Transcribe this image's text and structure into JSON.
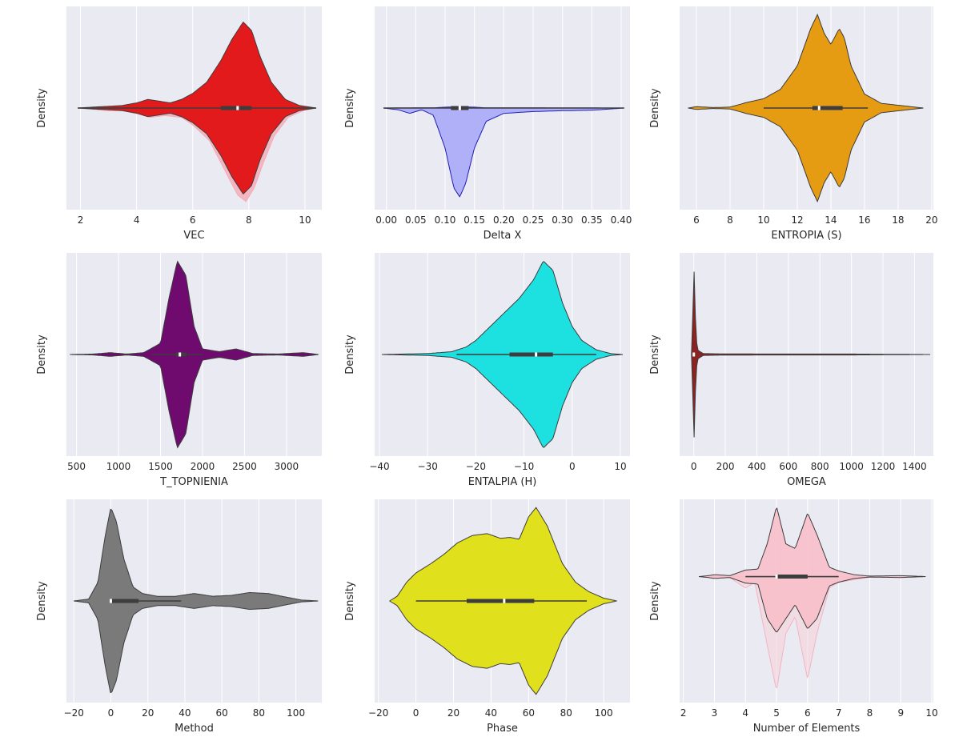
{
  "figure": {
    "ylabel": "Density"
  },
  "chart_data": [
    {
      "type": "violin",
      "xlabel": "VEC",
      "ylabel": "Density",
      "xlim": [
        1.5,
        10.6
      ],
      "xticks": [
        2,
        4,
        6,
        8,
        10
      ],
      "xtick_labels": [
        "2",
        "4",
        "6",
        "8",
        "10"
      ],
      "color": "#e31a1c",
      "ghost_color": "#f4aab5",
      "range": [
        1.9,
        10.4
      ],
      "density": [
        [
          1.9,
          0
        ],
        [
          2.5,
          0.012
        ],
        [
          3.0,
          0.02
        ],
        [
          3.5,
          0.03
        ],
        [
          4.0,
          0.06
        ],
        [
          4.4,
          0.1
        ],
        [
          4.8,
          0.08
        ],
        [
          5.2,
          0.06
        ],
        [
          5.6,
          0.1
        ],
        [
          6.0,
          0.17
        ],
        [
          6.5,
          0.3
        ],
        [
          7.0,
          0.55
        ],
        [
          7.4,
          0.8
        ],
        [
          7.8,
          1.0
        ],
        [
          8.1,
          0.9
        ],
        [
          8.4,
          0.6
        ],
        [
          8.8,
          0.3
        ],
        [
          9.3,
          0.1
        ],
        [
          9.8,
          0.03
        ],
        [
          10.4,
          0
        ]
      ],
      "ghost_density": [
        [
          1.9,
          0
        ],
        [
          2.5,
          0.015
        ],
        [
          3.0,
          0.03
        ],
        [
          3.5,
          0.03
        ],
        [
          4.0,
          0.06
        ],
        [
          4.5,
          0.1
        ],
        [
          5.0,
          0.08
        ],
        [
          5.6,
          0.1
        ],
        [
          6.0,
          0.18
        ],
        [
          6.6,
          0.35
        ],
        [
          7.2,
          0.7
        ],
        [
          7.6,
          0.93
        ],
        [
          7.9,
          1.0
        ],
        [
          8.2,
          0.85
        ],
        [
          8.5,
          0.6
        ],
        [
          8.9,
          0.3
        ],
        [
          9.4,
          0.1
        ],
        [
          10.0,
          0.02
        ],
        [
          10.4,
          0
        ]
      ],
      "lower_uses_ghost": false,
      "box": {
        "whisker_low": 1.9,
        "q1": 7.0,
        "median": 7.6,
        "q3": 8.1,
        "whisker_high": 10.4
      }
    },
    {
      "type": "violin",
      "xlabel": "Delta X",
      "ylabel": "Density",
      "xlim": [
        -0.02,
        0.415
      ],
      "xticks": [
        0,
        0.05,
        0.1,
        0.15,
        0.2,
        0.25,
        0.3,
        0.35,
        0.4
      ],
      "xtick_labels": [
        "0.00",
        "0.05",
        "0.10",
        "0.15",
        "0.20",
        "0.25",
        "0.30",
        "0.35",
        "0.40"
      ],
      "color": "#b0b0f8",
      "ghost_color": "#1f1fb4",
      "range": [
        -0.005,
        0.405
      ],
      "density": [
        [
          -0.005,
          0
        ],
        [
          0.02,
          0.02
        ],
        [
          0.04,
          0.06
        ],
        [
          0.06,
          0.02
        ],
        [
          0.08,
          0.08
        ],
        [
          0.1,
          0.45
        ],
        [
          0.115,
          0.9
        ],
        [
          0.125,
          1.0
        ],
        [
          0.135,
          0.85
        ],
        [
          0.15,
          0.45
        ],
        [
          0.17,
          0.15
        ],
        [
          0.2,
          0.06
        ],
        [
          0.25,
          0.04
        ],
        [
          0.3,
          0.03
        ],
        [
          0.35,
          0.025
        ],
        [
          0.405,
          0
        ]
      ],
      "ghost_density": [
        [
          -0.005,
          0
        ],
        [
          0.08,
          0.05
        ],
        [
          0.1,
          0.2
        ],
        [
          0.125,
          0.3
        ],
        [
          0.15,
          0.2
        ],
        [
          0.17,
          0.05
        ],
        [
          0.405,
          0
        ]
      ],
      "lower_uses_ghost": true,
      "upper_style": "thin",
      "box": {
        "whisker_low": -0.005,
        "q1": 0.11,
        "median": 0.125,
        "q3": 0.14,
        "whisker_high": 0.405
      }
    },
    {
      "type": "violin",
      "xlabel": "ENTROPIA (S)",
      "ylabel": "Density",
      "xlim": [
        5.0,
        20.1
      ],
      "xticks": [
        6,
        8,
        10,
        12,
        14,
        16,
        18,
        20
      ],
      "xtick_labels": [
        "6",
        "8",
        "10",
        "12",
        "14",
        "16",
        "18",
        "20"
      ],
      "color": "#e59b12",
      "ghost_color": "#e59b12",
      "range": [
        5.5,
        19.5
      ],
      "density": [
        [
          5.5,
          0
        ],
        [
          6.0,
          0.015
        ],
        [
          7.0,
          0.005
        ],
        [
          8.0,
          0.01
        ],
        [
          9.0,
          0.06
        ],
        [
          10.0,
          0.1
        ],
        [
          11.0,
          0.2
        ],
        [
          12.0,
          0.45
        ],
        [
          12.8,
          0.85
        ],
        [
          13.2,
          1.0
        ],
        [
          13.6,
          0.8
        ],
        [
          14.0,
          0.68
        ],
        [
          14.5,
          0.85
        ],
        [
          14.8,
          0.75
        ],
        [
          15.2,
          0.45
        ],
        [
          16.0,
          0.15
        ],
        [
          17.0,
          0.05
        ],
        [
          18.0,
          0.03
        ],
        [
          19.5,
          0
        ]
      ],
      "lower_uses_ghost": false,
      "box": {
        "whisker_low": 10.0,
        "q1": 12.9,
        "median": 13.3,
        "q3": 14.7,
        "whisker_high": 16.2
      }
    },
    {
      "type": "violin",
      "xlabel": "T_TOPNIENIA",
      "ylabel": "Density",
      "xlim": [
        380,
        3420
      ],
      "xticks": [
        500,
        1000,
        1500,
        2000,
        2500,
        3000
      ],
      "xtick_labels": [
        "500",
        "1000",
        "1500",
        "2000",
        "2500",
        "3000"
      ],
      "color": "#6f0a6f",
      "ghost_color": "#6f0a6f",
      "range": [
        420,
        3380
      ],
      "density": [
        [
          420,
          0
        ],
        [
          700,
          0.005
        ],
        [
          900,
          0.02
        ],
        [
          1100,
          0.005
        ],
        [
          1300,
          0.02
        ],
        [
          1500,
          0.12
        ],
        [
          1600,
          0.6
        ],
        [
          1700,
          1.0
        ],
        [
          1800,
          0.85
        ],
        [
          1900,
          0.3
        ],
        [
          2000,
          0.06
        ],
        [
          2200,
          0.03
        ],
        [
          2400,
          0.06
        ],
        [
          2600,
          0.01
        ],
        [
          2900,
          0.005
        ],
        [
          3200,
          0.02
        ],
        [
          3380,
          0
        ]
      ],
      "lower_uses_ghost": false,
      "box": {
        "whisker_low": 1400,
        "q1": 1680,
        "median": 1730,
        "q3": 1810,
        "whisker_high": 2000
      }
    },
    {
      "type": "violin",
      "xlabel": "ENTALPIA (H)",
      "ylabel": "Density",
      "xlim": [
        -41,
        12
      ],
      "xticks": [
        -40,
        -30,
        -20,
        -10,
        0,
        10
      ],
      "xtick_labels": [
        "−40",
        "−30",
        "−20",
        "−10",
        "0",
        "10"
      ],
      "color": "#1de1e1",
      "ghost_color": "#7ff4f4",
      "range": [
        -39.5,
        10.5
      ],
      "density": [
        [
          -39.5,
          0
        ],
        [
          -35,
          0.005
        ],
        [
          -30,
          0.01
        ],
        [
          -25,
          0.03
        ],
        [
          -22,
          0.08
        ],
        [
          -20,
          0.15
        ],
        [
          -17,
          0.3
        ],
        [
          -14,
          0.45
        ],
        [
          -11,
          0.6
        ],
        [
          -8,
          0.8
        ],
        [
          -6,
          1.0
        ],
        [
          -4,
          0.9
        ],
        [
          -2,
          0.55
        ],
        [
          0,
          0.3
        ],
        [
          2,
          0.15
        ],
        [
          5,
          0.05
        ],
        [
          8,
          0.01
        ],
        [
          10.5,
          0
        ]
      ],
      "lower_uses_ghost": false,
      "box": {
        "whisker_low": -24,
        "q1": -13,
        "median": -7.5,
        "q3": -4,
        "whisker_high": 5
      }
    },
    {
      "type": "violin",
      "xlabel": "OMEGA",
      "ylabel": "Density",
      "xlim": [
        -90,
        1520
      ],
      "xticks": [
        0,
        200,
        400,
        600,
        800,
        1000,
        1200,
        1400
      ],
      "xtick_labels": [
        "0",
        "200",
        "400",
        "600",
        "800",
        "1000",
        "1200",
        "1400"
      ],
      "color": "#8c2323",
      "ghost_color": "#8c2323",
      "range": [
        -15,
        1500
      ],
      "density": [
        [
          -15,
          0
        ],
        [
          -8,
          0.3
        ],
        [
          0,
          1.0
        ],
        [
          8,
          0.5
        ],
        [
          15,
          0.2
        ],
        [
          22,
          0.05
        ],
        [
          60,
          0.01
        ],
        [
          200,
          0.006
        ],
        [
          600,
          0.005
        ],
        [
          1000,
          0.005
        ],
        [
          1500,
          0
        ]
      ],
      "lower_uses_ghost": false,
      "box": {
        "whisker_low": -5,
        "q1": -2,
        "median": 0,
        "q3": 3,
        "whisker_high": 10
      }
    },
    {
      "type": "violin",
      "xlabel": "Method",
      "ylabel": "Density",
      "xlim": [
        -24,
        114
      ],
      "xticks": [
        -20,
        0,
        20,
        40,
        60,
        80,
        100
      ],
      "xtick_labels": [
        "−20",
        "0",
        "20",
        "40",
        "60",
        "80",
        "100"
      ],
      "color": "#7a7a7a",
      "ghost_color": "#7a7a7a",
      "range": [
        -20,
        112
      ],
      "density": [
        [
          -20,
          0
        ],
        [
          -12,
          0.02
        ],
        [
          -7,
          0.2
        ],
        [
          -3,
          0.7
        ],
        [
          0,
          1.0
        ],
        [
          3,
          0.85
        ],
        [
          7,
          0.45
        ],
        [
          12,
          0.15
        ],
        [
          17,
          0.08
        ],
        [
          25,
          0.05
        ],
        [
          35,
          0.05
        ],
        [
          45,
          0.08
        ],
        [
          55,
          0.05
        ],
        [
          65,
          0.06
        ],
        [
          75,
          0.09
        ],
        [
          85,
          0.08
        ],
        [
          95,
          0.04
        ],
        [
          103,
          0.01
        ],
        [
          112,
          0
        ]
      ],
      "lower_uses_ghost": false,
      "box": {
        "whisker_low": 0,
        "q1": 0,
        "median": 0,
        "q3": 15,
        "whisker_high": 38
      }
    },
    {
      "type": "violin",
      "xlabel": "Phase",
      "ylabel": "Density",
      "xlim": [
        -22,
        114
      ],
      "xticks": [
        -20,
        0,
        20,
        40,
        60,
        80,
        100
      ],
      "xtick_labels": [
        "−20",
        "0",
        "20",
        "40",
        "60",
        "80",
        "100"
      ],
      "color": "#e0e01c",
      "ghost_color": "#f5f565",
      "range": [
        -14,
        107
      ],
      "density": [
        [
          -14,
          0
        ],
        [
          -10,
          0.05
        ],
        [
          -5,
          0.2
        ],
        [
          0,
          0.3
        ],
        [
          8,
          0.4
        ],
        [
          15,
          0.5
        ],
        [
          22,
          0.62
        ],
        [
          30,
          0.7
        ],
        [
          38,
          0.72
        ],
        [
          45,
          0.67
        ],
        [
          50,
          0.68
        ],
        [
          55,
          0.66
        ],
        [
          60,
          0.9
        ],
        [
          64,
          1.0
        ],
        [
          70,
          0.8
        ],
        [
          78,
          0.4
        ],
        [
          85,
          0.2
        ],
        [
          92,
          0.1
        ],
        [
          100,
          0.03
        ],
        [
          107,
          0
        ]
      ],
      "lower_uses_ghost": false,
      "box": {
        "whisker_low": 0,
        "q1": 27,
        "median": 47,
        "q3": 63,
        "whisker_high": 91
      }
    },
    {
      "type": "violin",
      "xlabel": "Number of Elements",
      "ylabel": "Density",
      "xlim": [
        1.88,
        10.05
      ],
      "xticks": [
        2,
        3,
        4,
        5,
        6,
        7,
        8,
        9,
        10
      ],
      "xtick_labels": [
        "2",
        "3",
        "4",
        "5",
        "6",
        "7",
        "8",
        "9",
        "10"
      ],
      "color": "#f8bfca",
      "ghost_color": "#f5d0d8",
      "range": [
        2.5,
        9.8
      ],
      "density": [
        [
          2.5,
          0
        ],
        [
          2.8,
          0.01
        ],
        [
          3.0,
          0.02
        ],
        [
          3.5,
          0.01
        ],
        [
          4.0,
          0.07
        ],
        [
          4.4,
          0.08
        ],
        [
          4.7,
          0.35
        ],
        [
          5.0,
          0.75
        ],
        [
          5.3,
          0.35
        ],
        [
          5.6,
          0.3
        ],
        [
          6.0,
          0.68
        ],
        [
          6.3,
          0.45
        ],
        [
          6.7,
          0.1
        ],
        [
          7.0,
          0.06
        ],
        [
          7.5,
          0.02
        ],
        [
          8.0,
          0.005
        ],
        [
          9.0,
          0.01
        ],
        [
          9.8,
          0
        ]
      ],
      "lower_density": [
        [
          2.5,
          0
        ],
        [
          2.8,
          0.01
        ],
        [
          3.0,
          0.02
        ],
        [
          3.5,
          0.01
        ],
        [
          4.0,
          0.07
        ],
        [
          4.4,
          0.08
        ],
        [
          4.7,
          0.45
        ],
        [
          5.0,
          0.6
        ],
        [
          5.3,
          0.45
        ],
        [
          5.6,
          0.3
        ],
        [
          6.0,
          0.56
        ],
        [
          6.3,
          0.45
        ],
        [
          6.7,
          0.1
        ],
        [
          7.0,
          0.06
        ],
        [
          7.5,
          0.02
        ],
        [
          8.0,
          0.005
        ],
        [
          9.0,
          0.01
        ],
        [
          9.8,
          0
        ]
      ],
      "ghost_density": [
        [
          2.5,
          0
        ],
        [
          3.5,
          0.01
        ],
        [
          4.0,
          0.1
        ],
        [
          4.3,
          0.05
        ],
        [
          4.7,
          0.6
        ],
        [
          5.0,
          1.0
        ],
        [
          5.3,
          0.5
        ],
        [
          5.6,
          0.35
        ],
        [
          6.0,
          0.9
        ],
        [
          6.3,
          0.5
        ],
        [
          6.7,
          0.1
        ],
        [
          7.0,
          0.05
        ],
        [
          8.0,
          0.005
        ],
        [
          9.8,
          0
        ]
      ],
      "lower_uses_ghost": true,
      "offset_ratio": -0.12,
      "box": {
        "whisker_low": 4,
        "q1": 5,
        "median": 5.0,
        "q3": 6,
        "whisker_high": 7
      }
    }
  ]
}
